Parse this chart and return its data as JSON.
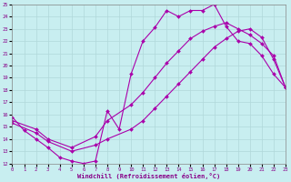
{
  "xlabel": "Windchill (Refroidissement éolien,°C)",
  "bg_color": "#c8eef0",
  "grid_color": "#b0d8da",
  "line_color": "#aa00aa",
  "xmin": 0,
  "xmax": 23,
  "ymin": 12,
  "ymax": 25,
  "line1_x": [
    0,
    1,
    2,
    3,
    4,
    5,
    6,
    7,
    8,
    9,
    10,
    11,
    12,
    13,
    14,
    15,
    16,
    17,
    18,
    19,
    20,
    21,
    22,
    23
  ],
  "line1_y": [
    15.8,
    14.7,
    14.0,
    13.3,
    12.5,
    12.2,
    12.0,
    12.2,
    16.3,
    14.8,
    19.3,
    22.0,
    23.1,
    24.5,
    24.0,
    24.5,
    24.5,
    25.0,
    23.2,
    22.0,
    21.8,
    20.8,
    19.3,
    18.2
  ],
  "line2_x": [
    0,
    2,
    3,
    5,
    7,
    8,
    10,
    11,
    12,
    13,
    14,
    15,
    16,
    17,
    18,
    19,
    20,
    21,
    22,
    23
  ],
  "line2_y": [
    15.5,
    14.8,
    14.0,
    13.3,
    14.2,
    15.5,
    16.8,
    17.8,
    19.0,
    20.2,
    21.2,
    22.2,
    22.8,
    23.2,
    23.5,
    23.0,
    22.5,
    21.8,
    20.8,
    18.2
  ],
  "line3_x": [
    0,
    2,
    3,
    5,
    7,
    8,
    10,
    11,
    12,
    13,
    14,
    15,
    16,
    17,
    18,
    19,
    20,
    21,
    22,
    23
  ],
  "line3_y": [
    15.3,
    14.5,
    13.8,
    13.0,
    13.5,
    14.0,
    14.8,
    15.5,
    16.5,
    17.5,
    18.5,
    19.5,
    20.5,
    21.5,
    22.2,
    22.8,
    23.0,
    22.3,
    20.5,
    18.2
  ]
}
